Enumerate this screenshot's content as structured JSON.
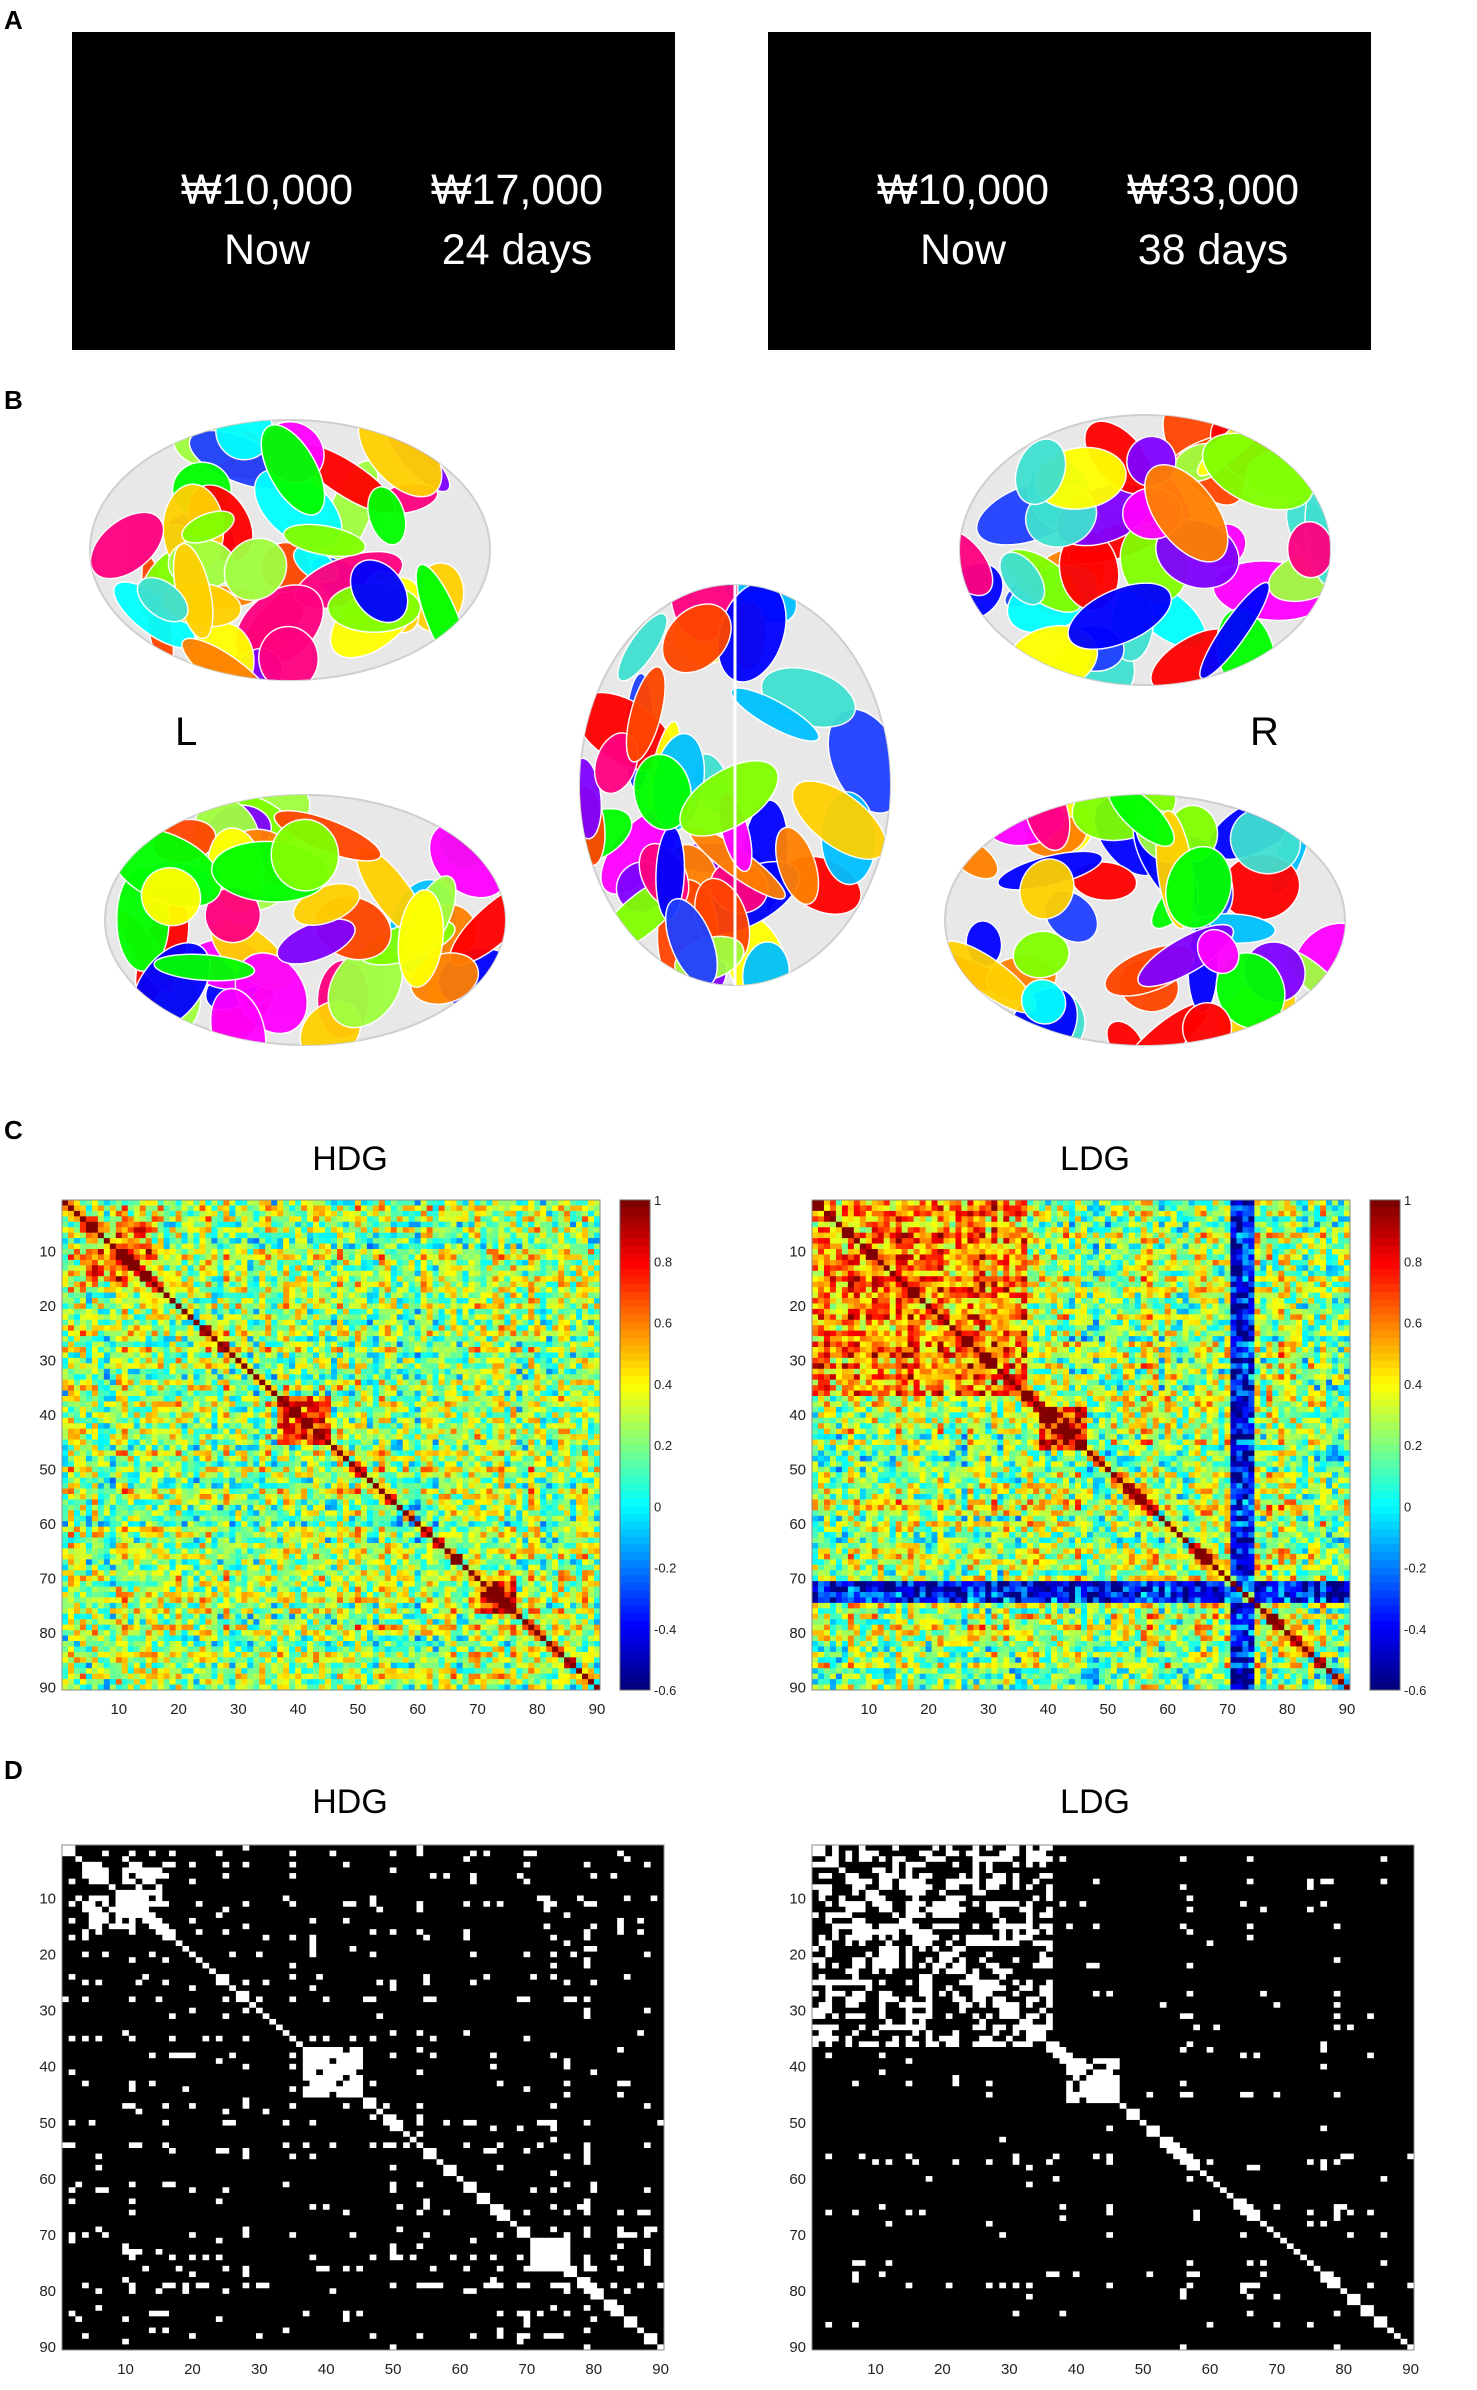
{
  "panels": {
    "a": "A",
    "b": "B",
    "c": "C",
    "d": "D"
  },
  "stimuli": [
    {
      "option1": {
        "amount": "₩10,000",
        "delay": "Now"
      },
      "option2": {
        "amount": "₩17,000",
        "delay": "24 days"
      }
    },
    {
      "option1": {
        "amount": "₩10,000",
        "delay": "Now"
      },
      "option2": {
        "amount": "₩33,000",
        "delay": "38 days"
      }
    }
  ],
  "brain": {
    "left_label": "L",
    "right_label": "R",
    "region_colors": [
      "#00ff00",
      "#0000ff",
      "#ff0000",
      "#ff00ff",
      "#ffff00",
      "#00ffff",
      "#ff8000",
      "#8000ff",
      "#80ff00",
      "#00c0ff",
      "#ff0080",
      "#ffd000",
      "#40e0d0",
      "#ff4500",
      "#a0ff40",
      "#2040ff"
    ]
  },
  "chart_data": [
    {
      "type": "heatmap",
      "title": "HDG",
      "x_ticks": [
        "10",
        "20",
        "30",
        "40",
        "50",
        "60",
        "70",
        "80",
        "90"
      ],
      "y_ticks": [
        "10",
        "20",
        "30",
        "40",
        "50",
        "60",
        "70",
        "80",
        "90"
      ],
      "colorbar_ticks": [
        "1",
        "0.8",
        "0.6",
        "0.4",
        "0.2",
        "0",
        "-0.2",
        "-0.4",
        "-0.6"
      ],
      "range": [
        -0.6,
        1
      ],
      "size": 90,
      "colormap": "jet"
    },
    {
      "type": "heatmap",
      "title": "LDG",
      "x_ticks": [
        "10",
        "20",
        "30",
        "40",
        "50",
        "60",
        "70",
        "80",
        "90"
      ],
      "y_ticks": [
        "10",
        "20",
        "30",
        "40",
        "50",
        "60",
        "70",
        "80",
        "90"
      ],
      "colorbar_ticks": [
        "1",
        "0.8",
        "0.6",
        "0.4",
        "0.2",
        "0",
        "-0.2",
        "-0.4",
        "-0.6"
      ],
      "range": [
        -0.6,
        1
      ],
      "size": 90,
      "colormap": "jet"
    },
    {
      "type": "heatmap",
      "title": "HDG",
      "x_ticks": [
        "10",
        "20",
        "30",
        "40",
        "50",
        "60",
        "70",
        "80",
        "90"
      ],
      "y_ticks": [
        "10",
        "20",
        "30",
        "40",
        "50",
        "60",
        "70",
        "80",
        "90"
      ],
      "size": 90,
      "colormap": "binary"
    },
    {
      "type": "heatmap",
      "title": "LDG",
      "x_ticks": [
        "10",
        "20",
        "30",
        "40",
        "50",
        "60",
        "70",
        "80",
        "90"
      ],
      "y_ticks": [
        "10",
        "20",
        "30",
        "40",
        "50",
        "60",
        "70",
        "80",
        "90"
      ],
      "size": 90,
      "colormap": "binary"
    }
  ]
}
